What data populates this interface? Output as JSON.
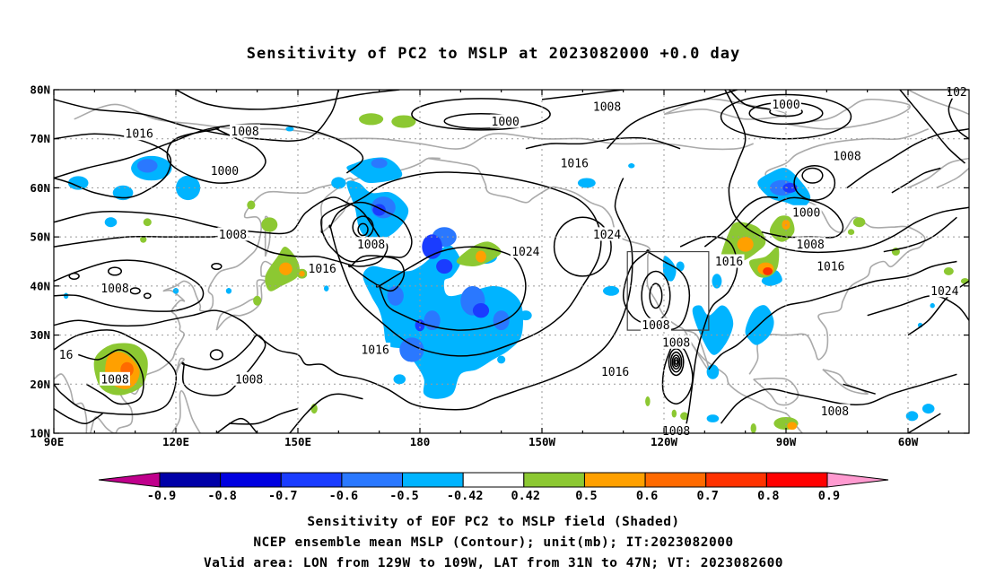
{
  "map": {
    "title": "Sensitivity of PC2 to MSLP at 2023082000 +0.0 day",
    "lat_labels": [
      "80N",
      "70N",
      "60N",
      "50N",
      "40N",
      "30N",
      "20N",
      "10N"
    ],
    "lat_values": [
      80,
      70,
      60,
      50,
      40,
      30,
      20,
      10
    ],
    "lon_labels": [
      "90E",
      "120E",
      "150E",
      "180",
      "150W",
      "120W",
      "90W",
      "60W"
    ],
    "lon_values": [
      90,
      120,
      150,
      180,
      210,
      240,
      270,
      300
    ],
    "extent": {
      "lon_min": 90,
      "lon_max": 315,
      "lat_min": 10,
      "lat_max": 80
    },
    "valid_box": {
      "lon_w": -129,
      "lon_e": -109,
      "lat_s": 31,
      "lat_n": 47
    },
    "contour_labels": [
      {
        "text": "1000",
        "lon": 201,
        "lat": 73.5
      },
      {
        "text": "1008",
        "lon": 137,
        "lat": 71.5
      },
      {
        "text": "1016",
        "lon": 111,
        "lat": 71
      },
      {
        "text": "1000",
        "lon": 132,
        "lat": 63.5
      },
      {
        "text": "1008",
        "lon": 134,
        "lat": 50.5
      },
      {
        "text": "1016",
        "lon": 156,
        "lat": 43.5
      },
      {
        "text": "1008",
        "lon": 105,
        "lat": 39.5
      },
      {
        "text": "16",
        "lon": 93,
        "lat": 26
      },
      {
        "text": "1008",
        "lon": 105,
        "lat": 21
      },
      {
        "text": "1008",
        "lon": 138,
        "lat": 21
      },
      {
        "text": "1008",
        "lon": 168,
        "lat": 48.5
      },
      {
        "text": "1016",
        "lon": 169,
        "lat": 27
      },
      {
        "text": "1024",
        "lon": 206,
        "lat": 47
      },
      {
        "text": "1024",
        "lon": 226,
        "lat": 50.5
      },
      {
        "text": "1016",
        "lon": 218,
        "lat": 65
      },
      {
        "text": "1016",
        "lon": 228,
        "lat": 22.5
      },
      {
        "text": "1008",
        "lon": 226,
        "lat": 76.5
      },
      {
        "text": "1008",
        "lon": 238,
        "lat": 32
      },
      {
        "text": "1008",
        "lon": 243,
        "lat": 28.5
      },
      {
        "text": "1008",
        "lon": 243,
        "lat": 10.5
      },
      {
        "text": "1016",
        "lon": 256,
        "lat": 45
      },
      {
        "text": "1000",
        "lon": 270,
        "lat": 77
      },
      {
        "text": "1008",
        "lon": 285,
        "lat": 66.5
      },
      {
        "text": "1000",
        "lon": 275,
        "lat": 55
      },
      {
        "text": "1008",
        "lon": 276,
        "lat": 48.5
      },
      {
        "text": "1016",
        "lon": 281,
        "lat": 44
      },
      {
        "text": "1024",
        "lon": 309,
        "lat": 39
      },
      {
        "text": "1008",
        "lon": 282,
        "lat": 14.5
      },
      {
        "text": "102",
        "lon": 312,
        "lat": 79.5
      }
    ]
  },
  "colorbar": {
    "labels": [
      "-0.9",
      "-0.8",
      "-0.7",
      "-0.6",
      "-0.5",
      "-0.42",
      "0.42",
      "0.5",
      "0.6",
      "0.7",
      "0.8",
      "0.9"
    ],
    "colors": [
      "#0000a8",
      "#0000e0",
      "#1a3cff",
      "#2a78ff",
      "#00b4ff",
      "#ffffff",
      "#8cc832",
      "#ffa000",
      "#ff6a00",
      "#ff3200",
      "#ff0000"
    ],
    "end_low": "#c0008c",
    "end_high": "#ff9ad0"
  },
  "footer": {
    "line1": "Sensitivity of EOF PC2 to MSLP field (Shaded)",
    "line2": "NCEP ensemble mean MSLP (Contour); unit(mb); IT:2023082000",
    "line3": "Valid area: LON from 129W to 109W, LAT from 31N to 47N; VT: 2023082600"
  }
}
